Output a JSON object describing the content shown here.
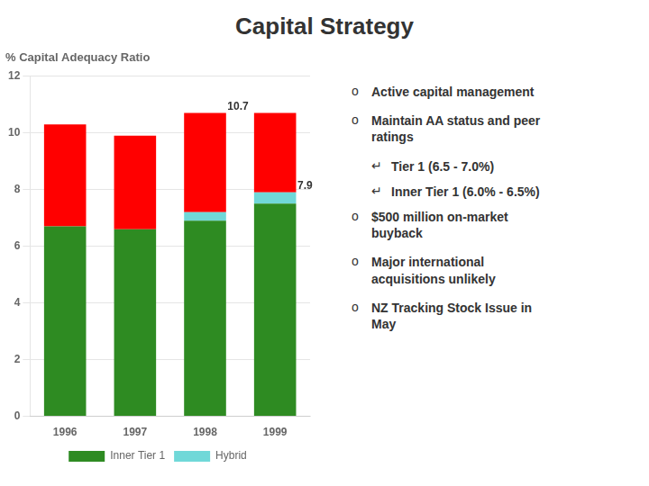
{
  "chart_data": {
    "type": "bar",
    "stacked": true,
    "title": "Capital Strategy",
    "subtitle": "% Capital Adequacy Ratio",
    "categories": [
      "1996",
      "1997",
      "1998",
      "1999"
    ],
    "series": [
      {
        "name": "Inner Tier 1",
        "color": "#2E8B22",
        "values": [
          6.7,
          6.6,
          6.9,
          7.5
        ]
      },
      {
        "name": "Hybrid",
        "color": "#70D8D8",
        "values": [
          0.0,
          0.0,
          0.3,
          0.4
        ]
      },
      {
        "name": null,
        "color": "#FF0000",
        "values": [
          3.6,
          3.3,
          3.5,
          2.8
        ]
      }
    ],
    "ylim": [
      0,
      12
    ],
    "yticks": [
      0,
      2,
      4,
      6,
      8,
      10,
      12
    ],
    "grid": true,
    "legend": "bottom",
    "annotations": [
      {
        "text": "10.7",
        "x": "1998",
        "y": 10.7
      },
      {
        "text": "7.9",
        "x": "1999",
        "y": 7.9
      }
    ],
    "bullet": "o",
    "sub_bullet": "↵",
    "bullets": [
      {
        "text": "Active capital management",
        "sub_items": []
      },
      {
        "text": "Maintain AA status and peer\nratings",
        "sub_items": [
          "Tier 1 (6.5 - 7.0%)",
          "Inner Tier 1 (6.0% - 6.5%)"
        ]
      },
      {
        "text": "$500 million on-market\nbuyback",
        "sub_items": []
      },
      {
        "text": "Major international\nacquisitions unlikely",
        "sub_items": []
      },
      {
        "text": "NZ Tracking Stock Issue in\nMay",
        "sub_items": []
      }
    ]
  }
}
